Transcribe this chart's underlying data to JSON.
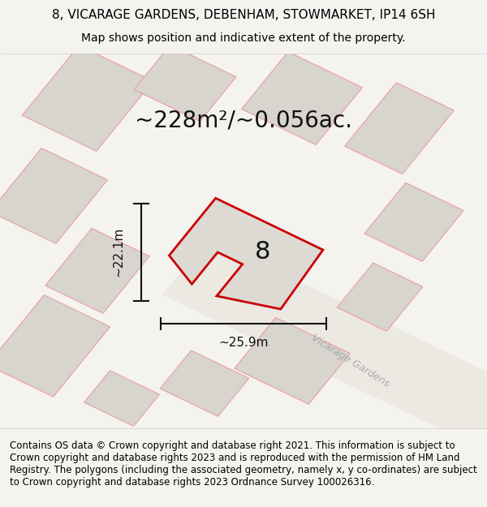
{
  "title_line1": "8, VICARAGE GARDENS, DEBENHAM, STOWMARKET, IP14 6SH",
  "title_line2": "Map shows position and indicative extent of the property.",
  "area_text": "~228m²/~0.056ac.",
  "label_number": "8",
  "dim_width": "~25.9m",
  "dim_height": "~22.1m",
  "street_label": "Vicarage Gardens",
  "footer_text": "Contains OS data © Crown copyright and database right 2021. This information is subject to Crown copyright and database rights 2023 and is reproduced with the permission of HM Land Registry. The polygons (including the associated geometry, namely x, y co-ordinates) are subject to Crown copyright and database rights 2023 Ordnance Survey 100026316.",
  "bg_color": "#f0eeea",
  "map_bg": "#e8e4de",
  "plot_fill": "#dddad4",
  "plot_edge": "#cc0000",
  "neighbor_fill": "#d8d4ce",
  "neighbor_edge": "#e8a0a0",
  "road_color": "#f5f2ee",
  "footer_bg": "#ffffff",
  "title_fontsize": 11,
  "subtitle_fontsize": 10,
  "area_fontsize": 20,
  "label_fontsize": 22,
  "dim_fontsize": 11,
  "footer_fontsize": 8.5
}
